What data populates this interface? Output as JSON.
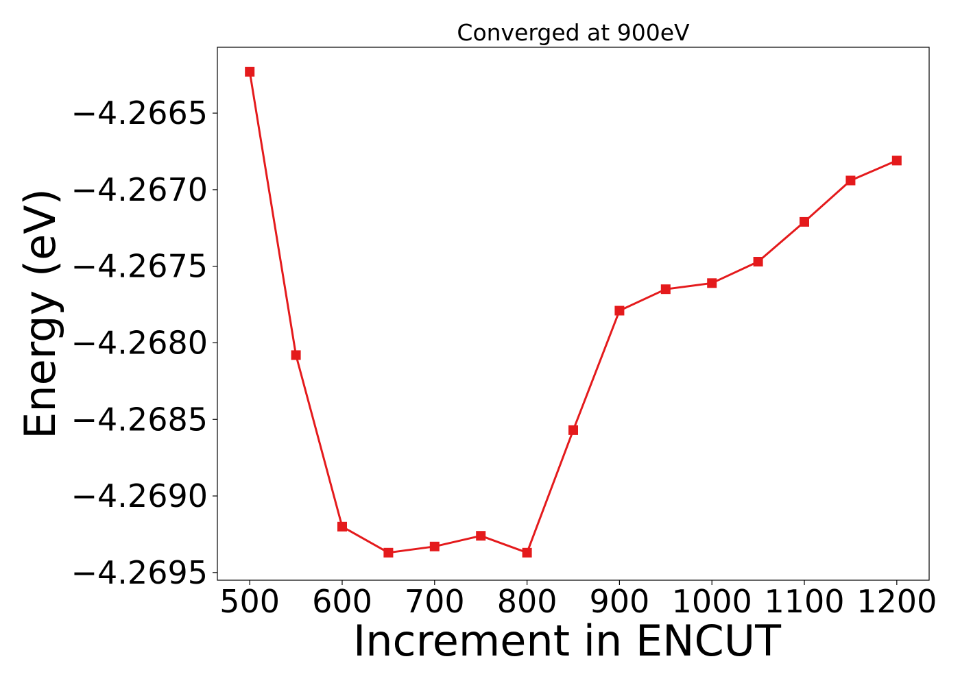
{
  "chart_data": {
    "type": "line",
    "title": "Converged at 900eV",
    "xlabel": "Increment in ENCUT",
    "ylabel": "Energy (eV)",
    "xlim": [
      465,
      1235
    ],
    "ylim": [
      -4.26955,
      -4.26607
    ],
    "xticks": [
      500,
      600,
      700,
      800,
      900,
      1000,
      1100,
      1200
    ],
    "yticks": [
      -4.2695,
      -4.269,
      -4.2685,
      -4.268,
      -4.2675,
      -4.267,
      -4.2665
    ],
    "xtick_labels": [
      "500",
      "600",
      "700",
      "800",
      "900",
      "1000",
      "1100",
      "1200"
    ],
    "ytick_labels": [
      "−4.2695",
      "−4.2690",
      "−4.2685",
      "−4.2680",
      "−4.2675",
      "−4.2670",
      "−4.2665"
    ],
    "grid": false,
    "series": [
      {
        "color": "#e41a1c",
        "marker": "square",
        "x": [
          500,
          550,
          600,
          650,
          700,
          750,
          800,
          850,
          900,
          950,
          1000,
          1050,
          1100,
          1150,
          1200
        ],
        "y": [
          -4.26623,
          -4.26808,
          -4.2692,
          -4.26937,
          -4.26933,
          -4.26926,
          -4.26937,
          -4.26857,
          -4.26779,
          -4.26765,
          -4.26761,
          -4.26747,
          -4.26721,
          -4.26694,
          -4.26681
        ]
      }
    ]
  }
}
